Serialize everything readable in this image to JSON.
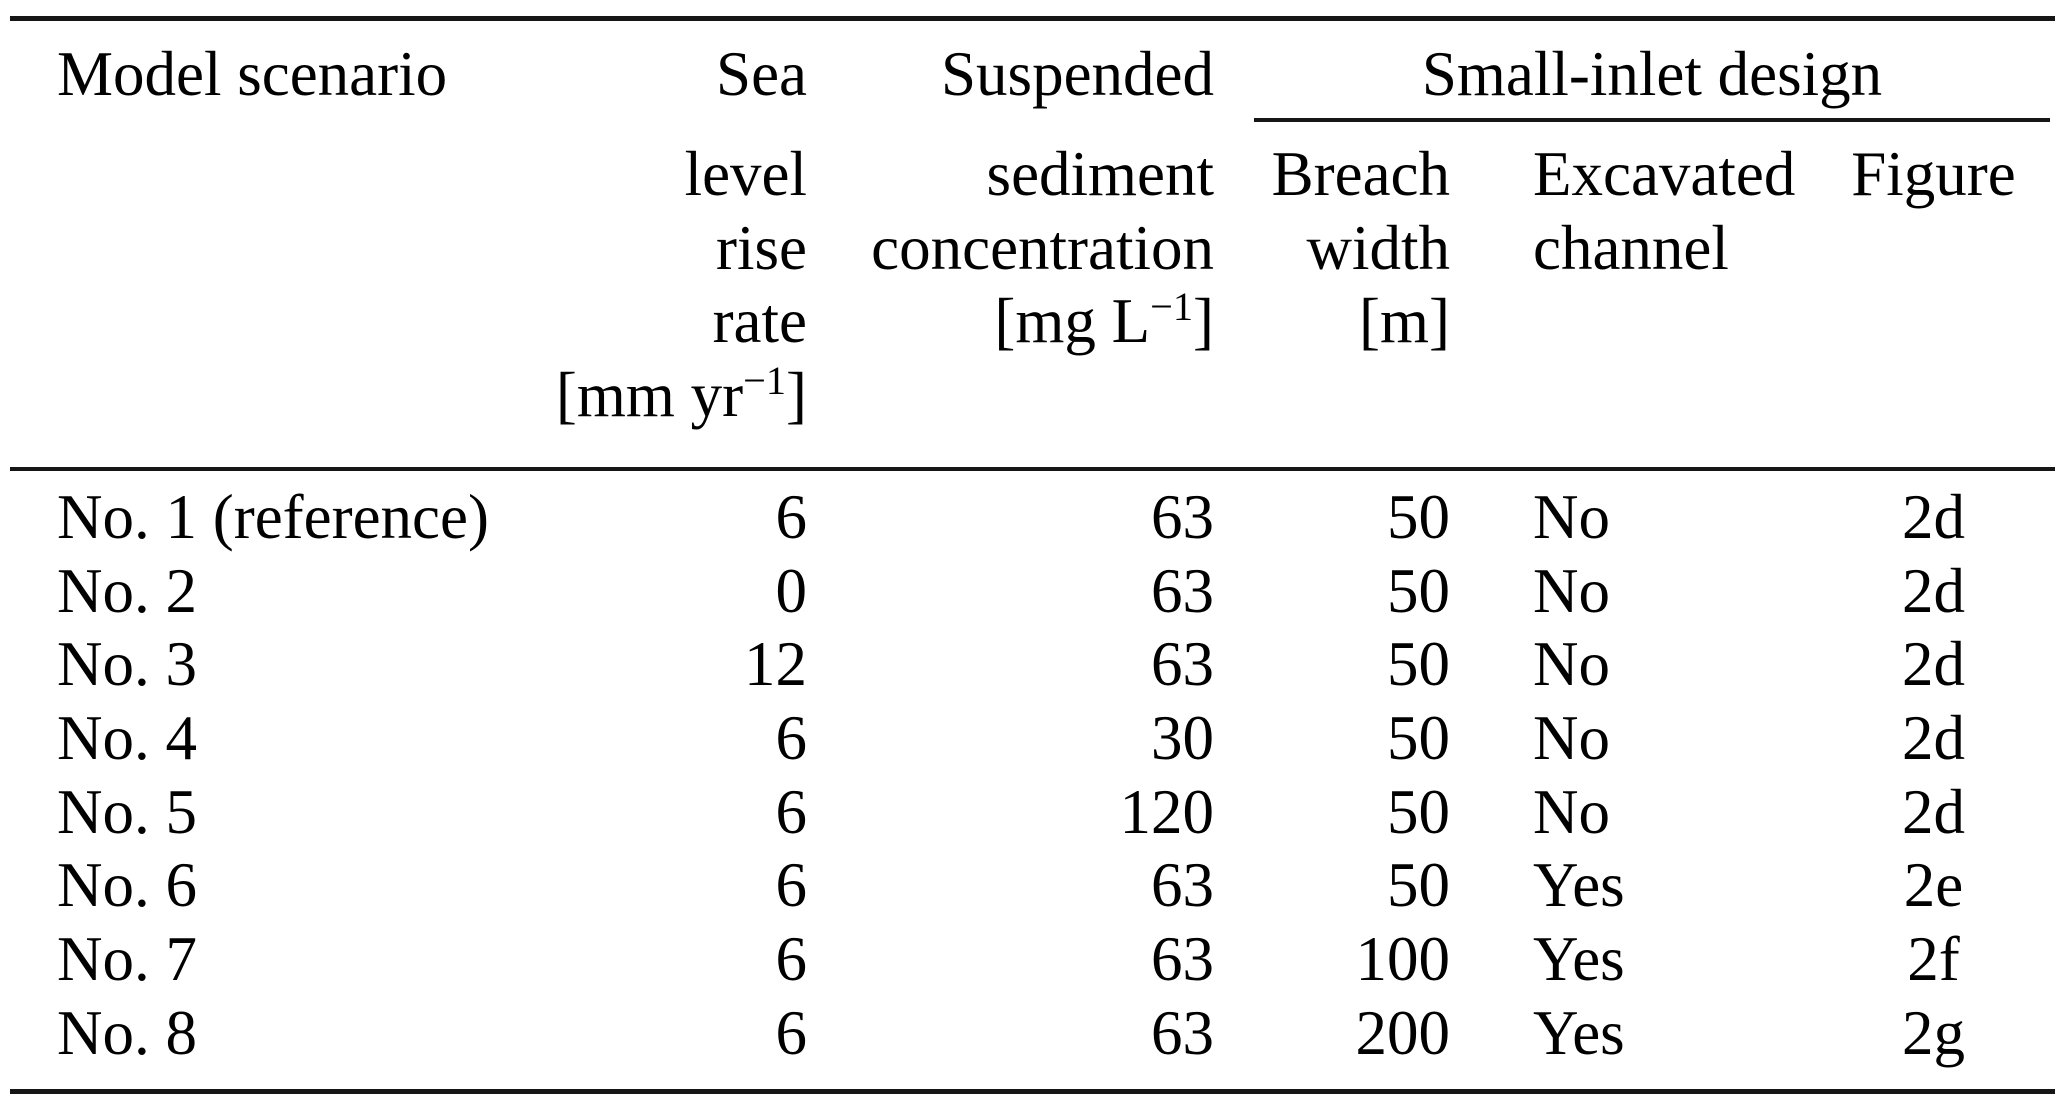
{
  "table": {
    "title_row": {
      "col1": "Model scenario",
      "col2": "Sea",
      "col3": "Suspended",
      "group": "Small-inlet design"
    },
    "header": {
      "col2_lines": [
        "level",
        "rise",
        "rate"
      ],
      "col2_unit": {
        "pre": "[mm yr",
        "sup": "−1",
        "post": "]"
      },
      "col3_lines": [
        "sediment",
        "concentration"
      ],
      "col3_unit": {
        "pre": "[mg L",
        "sup": "−1",
        "post": "]"
      },
      "col4_lines": [
        "Breach",
        "width",
        "[m]"
      ],
      "col5_lines": [
        "Excavated",
        "channel"
      ],
      "col6_lines": [
        "Figure"
      ]
    },
    "rows": [
      {
        "scenario": "No. 1 (reference)",
        "slr": "6",
        "ssc": "63",
        "breach": "50",
        "channel": "No",
        "figure": "2d"
      },
      {
        "scenario": "No. 2",
        "slr": "0",
        "ssc": "63",
        "breach": "50",
        "channel": "No",
        "figure": "2d"
      },
      {
        "scenario": "No. 3",
        "slr": "12",
        "ssc": "63",
        "breach": "50",
        "channel": "No",
        "figure": "2d"
      },
      {
        "scenario": "No. 4",
        "slr": "6",
        "ssc": "30",
        "breach": "50",
        "channel": "No",
        "figure": "2d"
      },
      {
        "scenario": "No. 5",
        "slr": "6",
        "ssc": "120",
        "breach": "50",
        "channel": "No",
        "figure": "2d"
      },
      {
        "scenario": "No. 6",
        "slr": "6",
        "ssc": "63",
        "breach": "50",
        "channel": "Yes",
        "figure": "2e"
      },
      {
        "scenario": "No. 7",
        "slr": "6",
        "ssc": "63",
        "breach": "100",
        "channel": "Yes",
        "figure": "2f"
      },
      {
        "scenario": "No. 8",
        "slr": "6",
        "ssc": "63",
        "breach": "200",
        "channel": "Yes",
        "figure": "2g"
      }
    ],
    "colors": {
      "text": "#000000",
      "rule": "#161616",
      "background": "#ffffff"
    }
  }
}
